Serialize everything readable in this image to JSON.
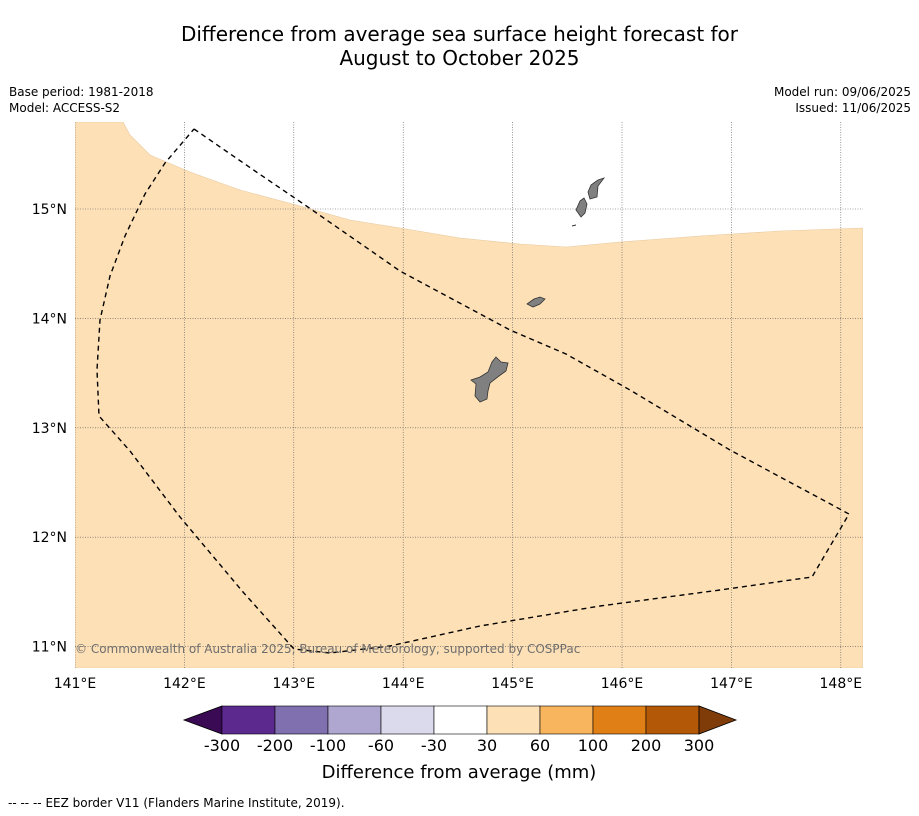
{
  "header": {
    "title_line1": "Difference from average sea surface height forecast for",
    "title_line2": "August to October 2025",
    "base_period": "Base period: 1981-2018",
    "model": "Model: ACCESS-S2",
    "model_run": "Model run: 09/06/2025",
    "issued": "Issued: 11/06/2025"
  },
  "map": {
    "lat_ticks": [
      "15°N",
      "14°N",
      "13°N",
      "12°N",
      "11°N"
    ],
    "lon_ticks": [
      "141°E",
      "142°E",
      "143°E",
      "144°E",
      "145°E",
      "146°E",
      "147°E",
      "148°E"
    ],
    "copyright": "© Commonwealth of Australia 2025, Bureau of Meteorology, supported by COSPPac",
    "gridlines": true,
    "fill_colors": {
      "anomaly_30_60": "#fde0b6",
      "land": "#808080",
      "eez_border": "#000000"
    }
  },
  "colorbar": {
    "xlabel": "Difference from average (mm)",
    "ticks": [
      "-300",
      "-200",
      "-100",
      "-60",
      "-30",
      "30",
      "60",
      "100",
      "200",
      "300"
    ],
    "colors": [
      "#3b0a55",
      "#5c2a8f",
      "#8170b0",
      "#b0a7d1",
      "#dadaec",
      "#ffffff",
      "#fde0b6",
      "#f8b55d",
      "#e07f16",
      "#b35806",
      "#7f3b08"
    ]
  },
  "footer": {
    "legend_dashes": "--  --  --",
    "legend_text": "EEZ border V11 (Flanders Marine Institute, 2019)."
  }
}
